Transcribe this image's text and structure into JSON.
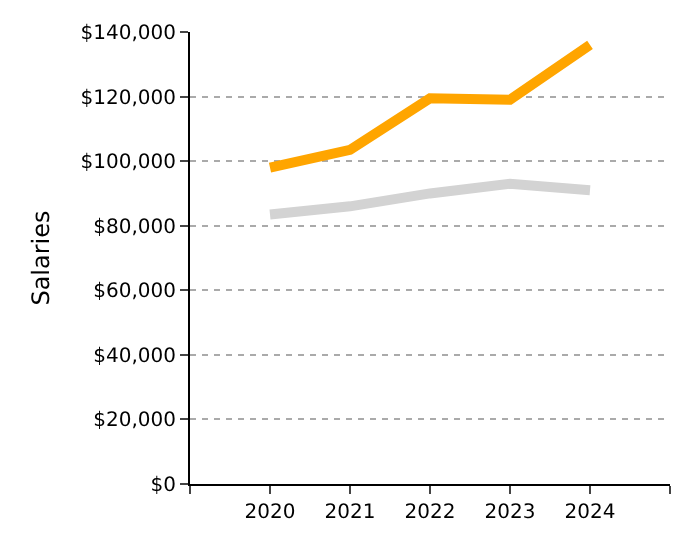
{
  "chart_data": {
    "type": "line",
    "ylabel": "Salaries",
    "x": [
      2020,
      2021,
      2022,
      2023,
      2024
    ],
    "series": [
      {
        "color": "#ffa500",
        "values": [
          98000,
          103500,
          119500,
          119000,
          136000
        ]
      },
      {
        "color": "#d3d3d3",
        "values": [
          83500,
          86000,
          90000,
          93000,
          91000
        ]
      }
    ],
    "xlim": [
      2019,
      2025
    ],
    "xticks": [
      {
        "value": 2019,
        "label": null
      },
      2020,
      2021,
      2022,
      2023,
      2024,
      {
        "value": 2025,
        "label": null
      }
    ],
    "ylim": [
      0,
      140000
    ],
    "yticks": [
      {
        "value": 0,
        "label": "$0"
      },
      {
        "value": 20000,
        "label": "$20,000"
      },
      {
        "value": 40000,
        "label": "$40,000"
      },
      {
        "value": 60000,
        "label": "$60,000"
      },
      {
        "value": 80000,
        "label": "$80,000"
      },
      {
        "value": 100000,
        "label": "$100,000"
      },
      {
        "value": 120000,
        "label": "$120,000"
      },
      {
        "value": 140000,
        "label": "$140,000"
      }
    ],
    "grid": "y",
    "legend": false,
    "marker": "none",
    "line_style": "solid"
  }
}
